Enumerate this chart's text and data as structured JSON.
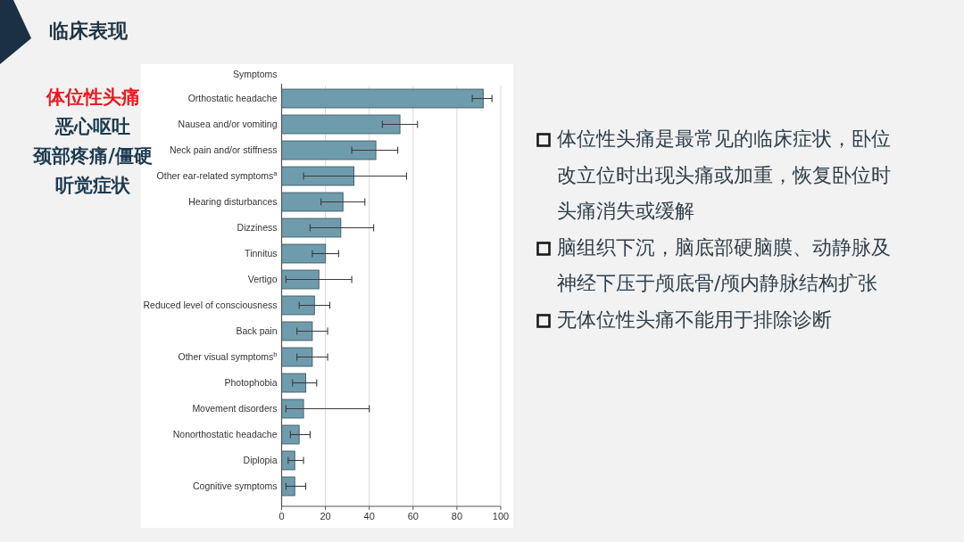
{
  "chart_data": {
    "type": "bar",
    "orientation": "horizontal",
    "title": "临床表现",
    "ylabel": "Symptoms",
    "categories": [
      "Orthostatic headache",
      "Nausea and/or vomiting",
      "Neck pain and/or stiffness",
      "Other ear-related symptoms$^{a}$",
      "Hearing disturbances",
      "Dizziness",
      "Tinnitus",
      "Vertigo",
      "Reduced level of consciousness",
      "Back pain",
      "Other visual symptoms$^{b}$",
      "Photophobia",
      "Movement disorders",
      "Nonorthostatic headache",
      "Diplopia",
      "Cognitive symptoms"
    ],
    "values": [
      92,
      54,
      43,
      33,
      28,
      27,
      20,
      17,
      15,
      14,
      14,
      11,
      10,
      8,
      6,
      6
    ],
    "errors": [
      [
        87,
        96
      ],
      [
        46,
        62
      ],
      [
        32,
        53
      ],
      [
        10,
        57
      ],
      [
        18,
        38
      ],
      [
        13,
        42
      ],
      [
        14,
        26
      ],
      [
        2,
        32
      ],
      [
        8,
        22
      ],
      [
        7,
        21
      ],
      [
        7,
        21
      ],
      [
        5,
        16
      ],
      [
        2,
        40
      ],
      [
        4,
        13
      ],
      [
        3,
        10
      ],
      [
        2,
        11
      ]
    ],
    "color": "#6f9cad",
    "xlim": [
      0,
      100
    ],
    "xticks": [
      0,
      20,
      40,
      60,
      80,
      100
    ],
    "grid": "x",
    "annotations": [
      "体位性头痛",
      "恶心呕吐",
      "颈部疼痛/僵硬",
      "听觉症状",
      "体位性头痛是最常见的临床症状，卧位改立位时出现头痛或加重，恢复卧位时头痛消失或缓解",
      "脑组织下沉，脑底部硬脑膜、动静脉及神经下压于颅底骨/颅内静脉结构扩张",
      "无体位性头痛不能用于排除诊断"
    ]
  }
}
